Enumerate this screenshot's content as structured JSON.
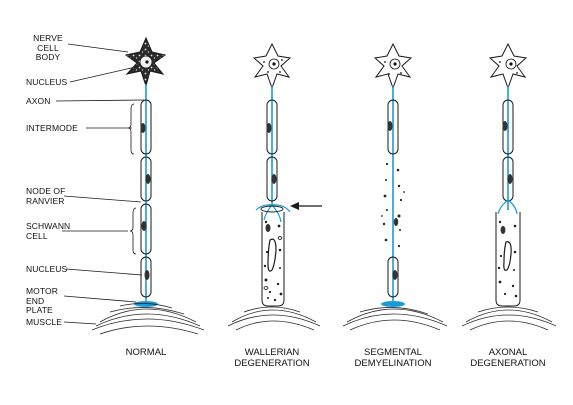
{
  "labels": {
    "nerve_cell_body": "NERVE CELL BODY",
    "nucleus_top": "NUCLEUS",
    "axon": "AXON",
    "intermode": "INTERMODE",
    "node_of_ranvier": "NODE OF RANVIER",
    "schwann_cell": "SCHWANN CELL",
    "nucleus_bottom": "NUCLEUS",
    "motor_end_plate": "MOTOR END PLATE",
    "muscle": "MUSCLE"
  },
  "captions": {
    "normal": "NORMAL",
    "wallerian": "WALLERIAN DEGENERATION",
    "segmental": "SEGMENTAL DEMYELINATION",
    "axonal": "AXONAL DEGENERATION"
  },
  "colors": {
    "axon": "#1a9bd7",
    "outline": "#1a1a1a",
    "cell_fill": "#3a3a3a",
    "muscle_line": "#2a2a2a",
    "end_plate": "#1a9bd7"
  }
}
